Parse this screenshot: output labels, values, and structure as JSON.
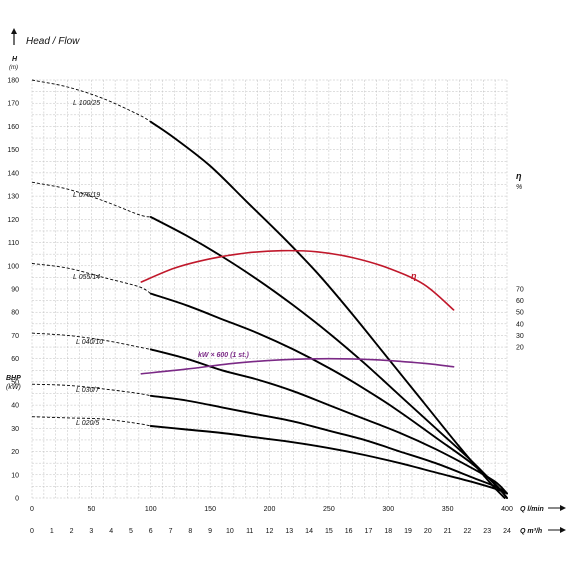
{
  "chart_data": {
    "type": "line",
    "title": "Head / Flow",
    "left_axis": {
      "label": "H",
      "unit": "(m)",
      "range": [
        0,
        180
      ],
      "ticks": [
        0,
        10,
        20,
        30,
        40,
        50,
        60,
        70,
        80,
        90,
        100,
        110,
        120,
        130,
        140,
        150,
        160,
        170,
        180
      ]
    },
    "bhp_axis": {
      "label": "BHP",
      "unit": "(kW)"
    },
    "right_axis": {
      "label": "η",
      "unit": "%",
      "ticks": [
        20,
        30,
        40,
        50,
        60,
        70
      ]
    },
    "x_axis_lmin": {
      "label": "Q l/min",
      "range": [
        0,
        400
      ],
      "ticks": [
        0,
        50,
        100,
        150,
        200,
        250,
        300,
        350,
        400
      ]
    },
    "x_axis_m3h": {
      "label": "Q m³/h",
      "range": [
        0,
        24
      ],
      "ticks": [
        0,
        1,
        2,
        3,
        4,
        5,
        6,
        7,
        8,
        9,
        10,
        11,
        12,
        13,
        14,
        15,
        16,
        17,
        18,
        19,
        20,
        21,
        22,
        23,
        24
      ]
    },
    "grid": true,
    "series": [
      {
        "name": "L 100/25",
        "color": "#000000",
        "dashed": [
          [
            0,
            180
          ],
          [
            30,
            177
          ],
          [
            60,
            172
          ],
          [
            90,
            165
          ],
          [
            100,
            162
          ]
        ],
        "solid": [
          [
            100,
            162
          ],
          [
            120,
            155
          ],
          [
            150,
            143
          ],
          [
            180,
            128
          ],
          [
            210,
            113
          ],
          [
            240,
            97
          ],
          [
            270,
            79
          ],
          [
            300,
            60
          ],
          [
            330,
            41
          ],
          [
            360,
            22
          ],
          [
            385,
            7
          ],
          [
            398,
            0
          ]
        ]
      },
      {
        "name": "L 075/19",
        "color": "#000000",
        "dashed": [
          [
            0,
            136
          ],
          [
            30,
            133
          ],
          [
            60,
            128
          ],
          [
            90,
            122
          ],
          [
            100,
            121
          ]
        ],
        "solid": [
          [
            100,
            121
          ],
          [
            130,
            113
          ],
          [
            160,
            104
          ],
          [
            190,
            94
          ],
          [
            220,
            83
          ],
          [
            250,
            71
          ],
          [
            280,
            58
          ],
          [
            310,
            44
          ],
          [
            340,
            30
          ],
          [
            370,
            16
          ],
          [
            395,
            3
          ],
          [
            400,
            0
          ]
        ]
      },
      {
        "name": "L 055/14",
        "color": "#000000",
        "dashed": [
          [
            0,
            101
          ],
          [
            30,
            99
          ],
          [
            60,
            95
          ],
          [
            90,
            91
          ],
          [
            100,
            88
          ]
        ],
        "solid": [
          [
            100,
            88
          ],
          [
            130,
            83
          ],
          [
            160,
            77
          ],
          [
            190,
            71
          ],
          [
            220,
            64
          ],
          [
            250,
            56
          ],
          [
            280,
            47
          ],
          [
            310,
            37
          ],
          [
            340,
            26
          ],
          [
            370,
            15
          ],
          [
            390,
            6
          ],
          [
            400,
            0
          ]
        ]
      },
      {
        "name": "L 040/10",
        "color": "#000000",
        "dashed": [
          [
            0,
            71
          ],
          [
            30,
            70
          ],
          [
            60,
            68
          ],
          [
            90,
            65
          ],
          [
            100,
            64
          ]
        ],
        "solid": [
          [
            100,
            64
          ],
          [
            130,
            60
          ],
          [
            160,
            55
          ],
          [
            190,
            51
          ],
          [
            220,
            46
          ],
          [
            250,
            40
          ],
          [
            280,
            34
          ],
          [
            310,
            28
          ],
          [
            340,
            21
          ],
          [
            370,
            13
          ],
          [
            390,
            7
          ],
          [
            400,
            2
          ]
        ]
      },
      {
        "name": "L 030/7",
        "color": "#000000",
        "dashed": [
          [
            0,
            49
          ],
          [
            30,
            48.5
          ],
          [
            60,
            47
          ],
          [
            90,
            45
          ],
          [
            100,
            44
          ]
        ],
        "solid": [
          [
            100,
            44
          ],
          [
            130,
            42
          ],
          [
            160,
            39
          ],
          [
            190,
            36
          ],
          [
            220,
            33
          ],
          [
            250,
            29
          ],
          [
            280,
            25
          ],
          [
            310,
            20
          ],
          [
            340,
            15
          ],
          [
            370,
            9
          ],
          [
            390,
            5
          ],
          [
            400,
            2
          ]
        ]
      },
      {
        "name": "L 020/5",
        "color": "#000000",
        "dashed": [
          [
            0,
            35
          ],
          [
            30,
            34.5
          ],
          [
            60,
            34
          ],
          [
            90,
            32
          ],
          [
            100,
            31
          ]
        ],
        "solid": [
          [
            100,
            31
          ],
          [
            130,
            29.5
          ],
          [
            160,
            28
          ],
          [
            190,
            26
          ],
          [
            220,
            24
          ],
          [
            250,
            21.5
          ],
          [
            280,
            18.5
          ],
          [
            310,
            15
          ],
          [
            340,
            11
          ],
          [
            370,
            7
          ],
          [
            390,
            4
          ],
          [
            400,
            2
          ]
        ]
      },
      {
        "name": "η",
        "color": "#c0182b",
        "axis": "right",
        "dashed": [],
        "solid": [
          [
            92,
            93
          ],
          [
            120,
            99
          ],
          [
            150,
            103
          ],
          [
            180,
            105.5
          ],
          [
            210,
            106.5
          ],
          [
            240,
            106
          ],
          [
            270,
            103.5
          ],
          [
            300,
            99
          ],
          [
            330,
            92
          ],
          [
            355,
            81
          ]
        ]
      },
      {
        "name": "kW × 600 (1 st.)",
        "color": "#7b2a86",
        "dashed": [],
        "solid": [
          [
            92,
            53.5
          ],
          [
            130,
            55.5
          ],
          [
            170,
            58
          ],
          [
            210,
            59.5
          ],
          [
            250,
            60
          ],
          [
            290,
            59.5
          ],
          [
            330,
            58
          ],
          [
            355,
            56.5
          ]
        ]
      }
    ]
  }
}
